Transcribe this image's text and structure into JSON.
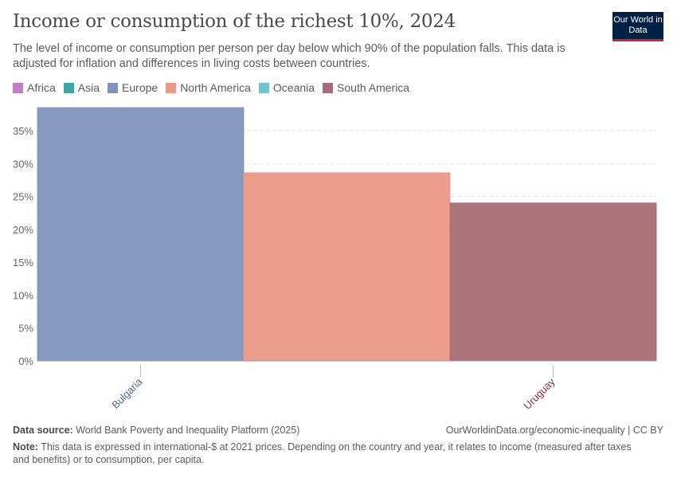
{
  "header": {
    "title": "Income or consumption of the richest 10%, 2024",
    "subtitle": "The level of income or consumption per person per day below which 90% of the population falls. This data is adjusted for inflation and differences in living costs between countries.",
    "logo": "Our World in Data"
  },
  "legend": [
    {
      "label": "Africa",
      "color": "#c080c0"
    },
    {
      "label": "Asia",
      "color": "#3fa69f"
    },
    {
      "label": "Europe",
      "color": "#7f93bb"
    },
    {
      "label": "North America",
      "color": "#ec9888"
    },
    {
      "label": "Oceania",
      "color": "#6cc6d0"
    },
    {
      "label": "South America",
      "color": "#a86b73"
    }
  ],
  "chart_data": {
    "type": "bar",
    "title": "Income or consumption of the richest 10%, 2024",
    "ylim": [
      0,
      38.5
    ],
    "yticks": [
      0,
      5,
      10,
      15,
      20,
      25,
      30,
      35
    ],
    "ytick_labels": [
      "0%",
      "5%",
      "10%",
      "15%",
      "20%",
      "25%",
      "30%",
      "35%"
    ],
    "grid": true,
    "legend_placement": "top-left",
    "bars": [
      {
        "label": "Bulgaria",
        "region": "Europe",
        "value": 38.5,
        "color": "#7f93bb",
        "label_color": "#4c6a9c"
      },
      {
        "label": "",
        "region": "North America",
        "value": 28.6,
        "color": "#ec9888",
        "label_color": "#c05a4a"
      },
      {
        "label": "Uruguay",
        "region": "South America",
        "value": 24.0,
        "color": "#a86b73",
        "label_color": "#883039"
      }
    ]
  },
  "footer": {
    "source_label": "Data source:",
    "source": "World Bank Poverty and Inequality Platform (2025)",
    "url": "OurWorldinData.org/economic-inequality | CC BY",
    "note_label": "Note:",
    "note": "This data is expressed in international-$ at 2021 prices. Depending on the country and year, it relates to income (measured after taxes and benefits) or to consumption, per capita."
  }
}
